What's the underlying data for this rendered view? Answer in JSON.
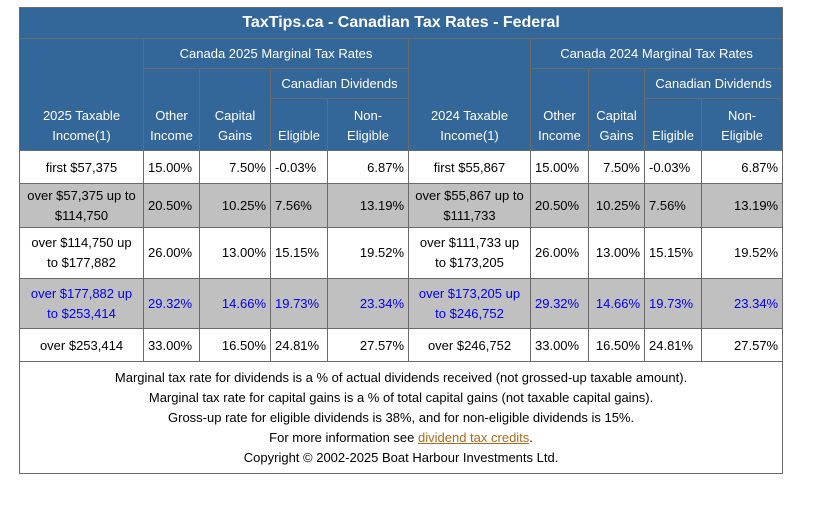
{
  "title": "TaxTips.ca - Canadian Tax Rates - Federal",
  "group_2025": "Canada 2025 Marginal Tax Rates",
  "group_2024": "Canada 2024 Marginal Tax Rates",
  "dividends_label": "Canadian Dividends",
  "col_income_2025": [
    "2025 Taxable",
    "Income(1)"
  ],
  "col_income_2024": [
    "2024 Taxable",
    "Income(1)"
  ],
  "col_other": [
    "Other",
    "Income"
  ],
  "col_capital": [
    "Capital",
    "Gains"
  ],
  "col_eligible": "Eligible",
  "col_noneligible": [
    "Non-",
    "Eligible"
  ],
  "rows": [
    {
      "inc25": [
        "first $57,375"
      ],
      "o25": "15.00%",
      "c25": "7.50%",
      "e25": "-0.03%",
      "n25": "6.87%",
      "inc24": [
        "first $55,867"
      ],
      "o24": "15.00%",
      "c24": "7.50%",
      "e24": "-0.03%",
      "n24": "6.87%"
    },
    {
      "inc25": [
        "over $57,375 up to",
        "$114,750"
      ],
      "o25": "20.50%",
      "c25": "10.25%",
      "e25": "7.56%",
      "n25": "13.19%",
      "inc24": [
        "over $55,867 up to",
        "$111,733"
      ],
      "o24": "20.50%",
      "c24": "10.25%",
      "e24": "7.56%",
      "n24": "13.19%"
    },
    {
      "inc25": [
        "over $114,750 up",
        "to $177,882"
      ],
      "o25": "26.00%",
      "c25": "13.00%",
      "e25": "15.15%",
      "n25": "19.52%",
      "inc24": [
        "over $111,733 up",
        "to $173,205"
      ],
      "o24": "26.00%",
      "c24": "13.00%",
      "e24": "15.15%",
      "n24": "19.52%"
    },
    {
      "inc25": [
        "over $177,882 up",
        "to $253,414"
      ],
      "o25": "29.32%",
      "c25": "14.66%",
      "e25": "19.73%",
      "n25": "23.34%",
      "inc24": [
        "over $173,205 up",
        "to $246,752"
      ],
      "o24": "29.32%",
      "c24": "14.66%",
      "e24": "19.73%",
      "n24": "23.34%"
    },
    {
      "inc25": [
        "over $253,414"
      ],
      "o25": "33.00%",
      "c25": "16.50%",
      "e25": "24.81%",
      "n25": "27.57%",
      "inc24": [
        "over $246,752"
      ],
      "o24": "33.00%",
      "c24": "16.50%",
      "e24": "24.81%",
      "n24": "27.57%"
    }
  ],
  "notes": {
    "line1": "Marginal tax rate for dividends is a % of actual dividends received (not grossed-up taxable amount).",
    "line2": "Marginal tax rate for capital gains is a % of total capital gains (not taxable capital gains).",
    "line3": "Gross-up rate for eligible dividends is 38%, and for non-eligible dividends is 15%.",
    "line4_prefix": "For more information see ",
    "line4_link": "dividend tax credits",
    "line4_suffix": ".",
    "copyright": "Copyright © 2002-2025 Boat Harbour Investments Ltd."
  },
  "colors": {
    "header_bg": "#336699",
    "shaded_row": "#c0c0c0",
    "highlight_text": "#0000ee",
    "link": "#a86b1f"
  }
}
